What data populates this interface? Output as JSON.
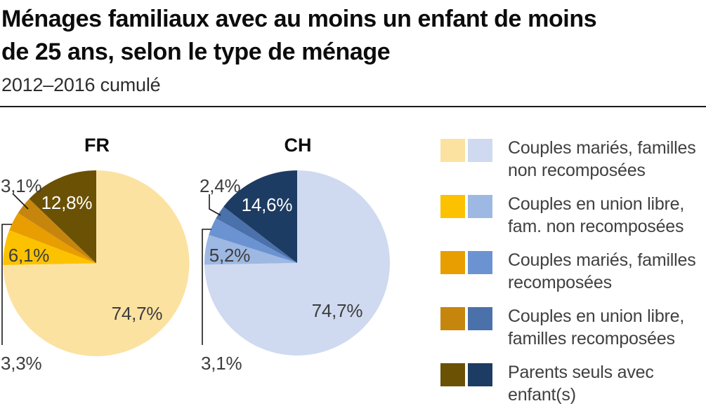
{
  "header": {
    "title_lines": [
      "Ménages familiaux avec au moins un enfant de moins",
      "de 25 ans, selon le type de ménage"
    ],
    "subtitle": "2012–2016 cumulé"
  },
  "chart_data": {
    "type": "pie",
    "title": "Ménages familiaux avec au moins un enfant de moins de 25 ans, selon le type de ménage",
    "subtitle": "2012–2016 cumulé",
    "unit": "%",
    "start_angle_deg": 0,
    "direction": "clockwise",
    "legend_position": "right",
    "categories": [
      "Couples mariés, familles non recomposées",
      "Couples en union libre, fam. non recomposées",
      "Couples mariés, familles recomposées",
      "Couples en union libre, familles recomposées",
      "Parents seuls avec enfant(s)"
    ],
    "series": [
      {
        "name": "FR",
        "values": [
          74.7,
          6.1,
          3.3,
          3.1,
          12.8
        ],
        "display_labels": [
          "74,7%",
          "6,1%",
          "3,3%",
          "3,1%",
          "12,8%"
        ],
        "colors": [
          "#FCE2A1",
          "#FCC200",
          "#E89E00",
          "#C6860D",
          "#6B5104"
        ]
      },
      {
        "name": "CH",
        "values": [
          74.7,
          5.2,
          3.1,
          2.4,
          14.6
        ],
        "display_labels": [
          "74,7%",
          "5,2%",
          "3,1%",
          "2,4%",
          "14,6%"
        ],
        "colors": [
          "#CFDAF0",
          "#9DB8E2",
          "#6C93D1",
          "#4B71AB",
          "#1D3C63"
        ]
      }
    ]
  },
  "pies": {
    "fr": {
      "header": "FR",
      "label_main": "74,7%",
      "label_slice2": "6,1%",
      "label_slice3": "3,3%",
      "label_slice4": "3,1%",
      "label_slice5": "12,8%"
    },
    "ch": {
      "header": "CH",
      "label_main": "74,7%",
      "label_slice2": "5,2%",
      "label_slice3": "3,1%",
      "label_slice4": "2,4%",
      "label_slice5": "14,6%"
    }
  },
  "legend": {
    "items": [
      {
        "label": "Couples mariés, familles non recomposées",
        "color_fr": "#FCE2A1",
        "color_ch": "#CFDAF0"
      },
      {
        "label": "Couples en union libre, fam. non recomposées",
        "color_fr": "#FCC200",
        "color_ch": "#9DB8E2"
      },
      {
        "label": "Couples mariés, familles recomposées",
        "color_fr": "#E89E00",
        "color_ch": "#6C93D1"
      },
      {
        "label": "Couples en union libre, familles recomposées",
        "color_fr": "#C6860D",
        "color_ch": "#4B71AB"
      },
      {
        "label": "Parents seuls avec enfant(s)",
        "color_fr": "#6B5104",
        "color_ch": "#1D3C63"
      }
    ]
  }
}
